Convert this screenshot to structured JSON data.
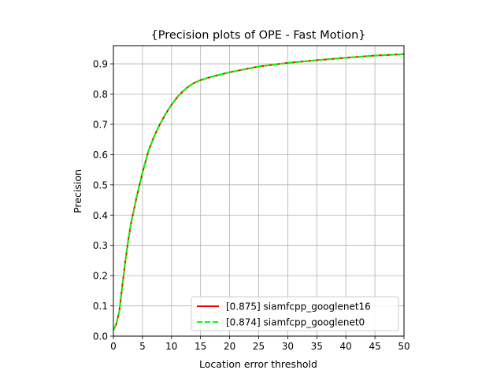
{
  "chart_data": {
    "type": "line",
    "title": "{Precision plots of OPE - Fast Motion}",
    "xlabel": "Location error threshold",
    "ylabel": "Precision",
    "xlim": [
      0,
      50
    ],
    "ylim": [
      0,
      0.96
    ],
    "xticks": [
      "0",
      "5",
      "10",
      "15",
      "20",
      "25",
      "30",
      "35",
      "40",
      "45",
      "50"
    ],
    "yticks": [
      "0.0",
      "0.1",
      "0.2",
      "0.3",
      "0.4",
      "0.5",
      "0.6",
      "0.7",
      "0.8",
      "0.9"
    ],
    "grid": true,
    "legend_position": "lower-right",
    "x": [
      0,
      0.5,
      1,
      1.5,
      2,
      2.5,
      3,
      4,
      5,
      6,
      7,
      8,
      9,
      10,
      11,
      12,
      13,
      14,
      15,
      17,
      20,
      25,
      30,
      35,
      40,
      45,
      50
    ],
    "series": [
      {
        "name": "[0.875] siamfcpp_googlenet16",
        "color": "#ff0000",
        "dash": "solid",
        "values": [
          0.02,
          0.04,
          0.08,
          0.16,
          0.24,
          0.31,
          0.37,
          0.46,
          0.54,
          0.61,
          0.66,
          0.7,
          0.735,
          0.765,
          0.79,
          0.81,
          0.826,
          0.838,
          0.846,
          0.858,
          0.872,
          0.891,
          0.903,
          0.912,
          0.92,
          0.927,
          0.932
        ]
      },
      {
        "name": "[0.874] siamfcpp_googlenet0",
        "color": "#00ff00",
        "dash": "dashed",
        "values": [
          0.02,
          0.04,
          0.08,
          0.16,
          0.24,
          0.31,
          0.37,
          0.46,
          0.54,
          0.61,
          0.66,
          0.7,
          0.735,
          0.765,
          0.79,
          0.81,
          0.826,
          0.838,
          0.846,
          0.858,
          0.872,
          0.891,
          0.903,
          0.912,
          0.92,
          0.927,
          0.932
        ]
      }
    ]
  }
}
